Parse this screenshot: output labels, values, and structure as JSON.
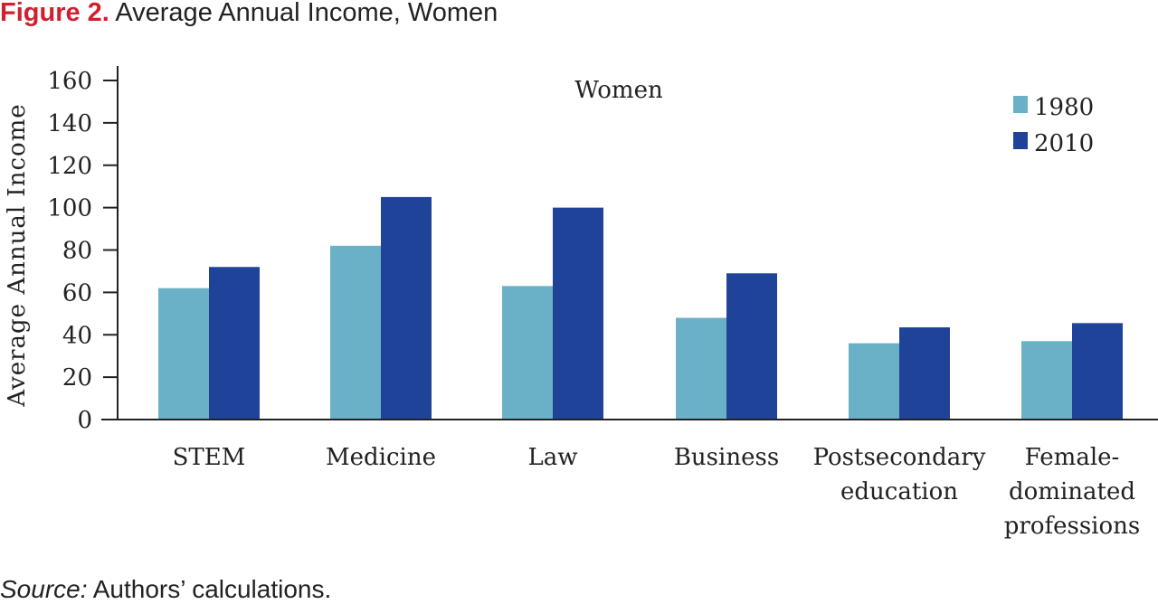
{
  "figure": {
    "label": "Figure 2.",
    "title": "Average Annual Income, Women"
  },
  "source": {
    "label": "Source:",
    "text": "Authors’ calculations."
  },
  "chart_data": {
    "type": "bar",
    "title": "Women",
    "xlabel": "",
    "ylabel": "Average Annual Income",
    "ylim": [
      0,
      160
    ],
    "yticks": [
      0,
      20,
      40,
      60,
      80,
      100,
      120,
      140,
      160
    ],
    "grid": false,
    "legend_position": "top-right",
    "categories": [
      [
        "STEM"
      ],
      [
        "Medicine"
      ],
      [
        "Law"
      ],
      [
        "Business"
      ],
      [
        "Postsecondary",
        "education"
      ],
      [
        "Female-",
        "dominated",
        "professions"
      ]
    ],
    "series": [
      {
        "name": "1980",
        "color": "#6ab1c7",
        "values": [
          62,
          82,
          63,
          48,
          36,
          37
        ]
      },
      {
        "name": "2010",
        "color": "#20439a",
        "values": [
          72,
          105,
          100,
          69,
          43.5,
          45.5
        ]
      }
    ]
  }
}
